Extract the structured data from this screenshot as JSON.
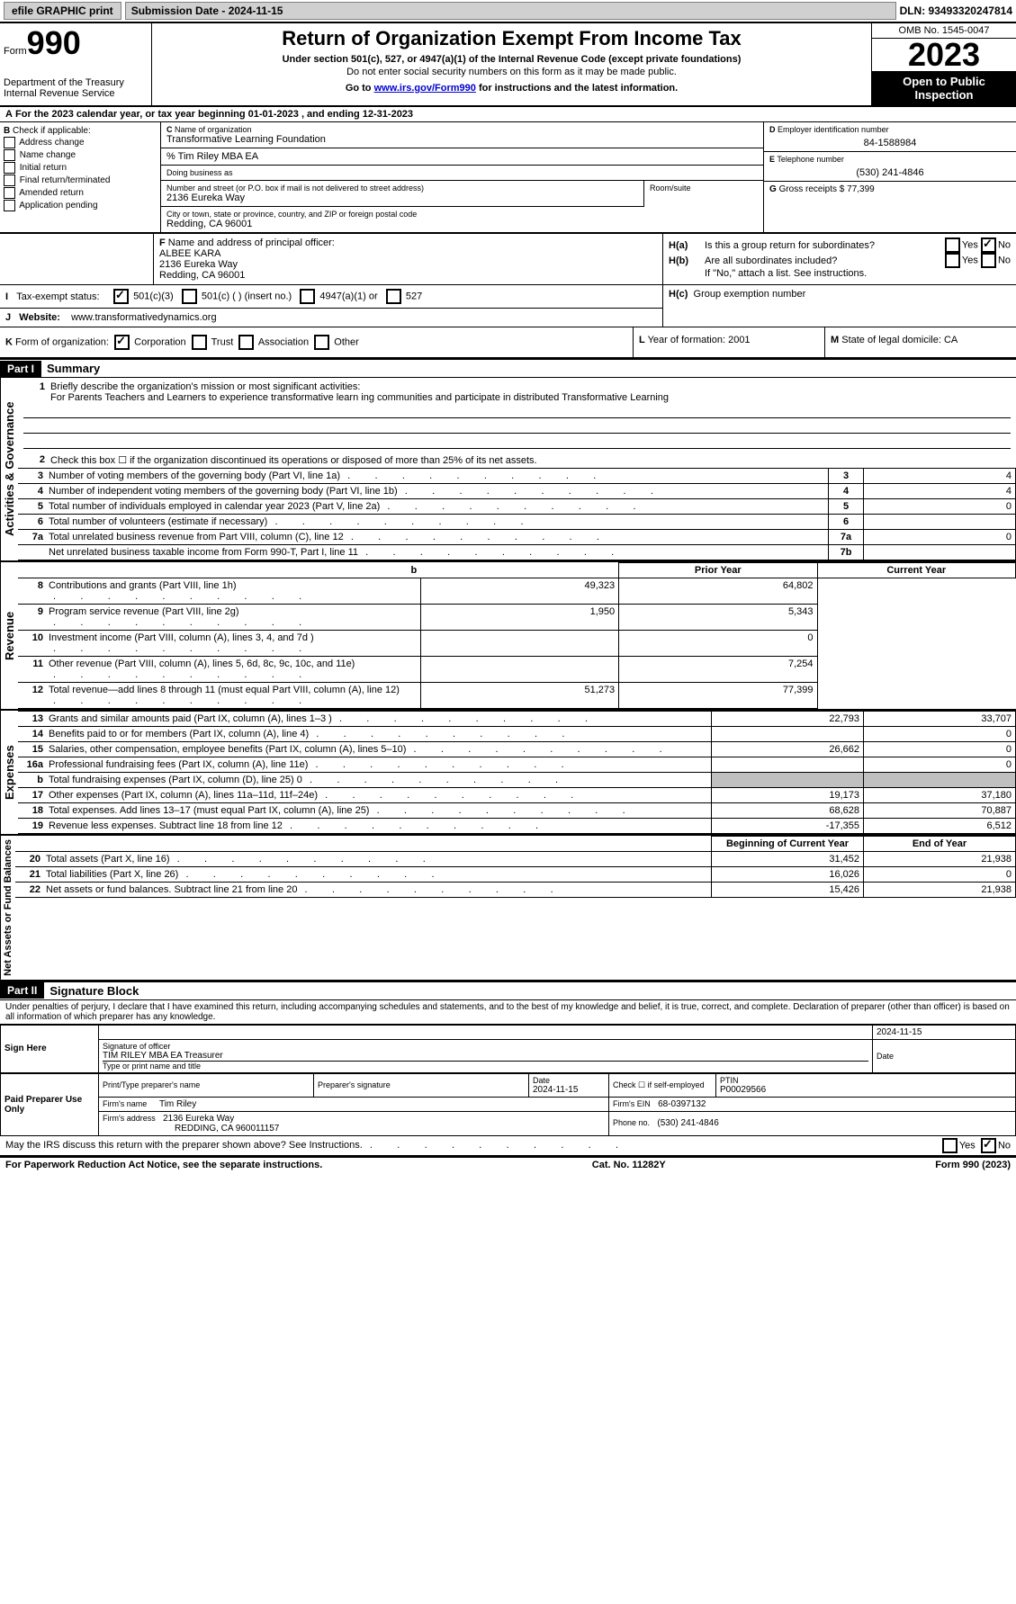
{
  "topbar": {
    "efile": "efile GRAPHIC print",
    "submission": "Submission Date - 2024-11-15",
    "dln": "DLN: 93493320247814"
  },
  "header": {
    "form_word": "Form",
    "form_num": "990",
    "dept": "Department of the Treasury Internal Revenue Service",
    "title": "Return of Organization Exempt From Income Tax",
    "sub1": "Under section 501(c), 527, or 4947(a)(1) of the Internal Revenue Code (except private foundations)",
    "sub2": "Do not enter social security numbers on this form as it may be made public.",
    "link_prefix": "Go to ",
    "link_url": "www.irs.gov/Form990",
    "link_suffix": " for instructions and the latest information.",
    "omb": "OMB No. 1545-0047",
    "year": "2023",
    "open": "Open to Public Inspection"
  },
  "A": {
    "text": "For the 2023 calendar year, or tax year beginning 01-01-2023    , and ending 12-31-2023"
  },
  "B": {
    "label": "Check if applicable:",
    "opts": [
      "Address change",
      "Name change",
      "Initial return",
      "Final return/terminated",
      "Amended return",
      "Application pending"
    ]
  },
  "C": {
    "name_lbl": "Name of organization",
    "name": "Transformative Learning Foundation",
    "care_of": "% Tim Riley MBA EA",
    "dba_lbl": "Doing business as",
    "dba": "",
    "addr_lbl": "Number and street (or P.O. box if mail is not delivered to street address)",
    "room_lbl": "Room/suite",
    "addr": "2136 Eureka Way",
    "city_lbl": "City or town, state or province, country, and ZIP or foreign postal code",
    "city": "Redding, CA  96001"
  },
  "D": {
    "lbl": "Employer identification number",
    "val": "84-1588984"
  },
  "E": {
    "lbl": "Telephone number",
    "val": "(530) 241-4846"
  },
  "G": {
    "lbl": "Gross receipts $",
    "val": "77,399"
  },
  "F": {
    "lbl": "Name and address of principal officer:",
    "name": "ALBEE KARA",
    "addr": "2136 Eureka Way",
    "city": "Redding, CA  96001"
  },
  "H": {
    "a": "Is this a group return for subordinates?",
    "b": "Are all subordinates included?",
    "b_note": "If \"No,\" attach a list. See instructions.",
    "c": "Group exemption number",
    "yes": "Yes",
    "no": "No"
  },
  "I": {
    "lbl": "Tax-exempt status:",
    "o1": "501(c)(3)",
    "o2": "501(c) (  ) (insert no.)",
    "o3": "4947(a)(1) or",
    "o4": "527"
  },
  "J": {
    "lbl": "Website:",
    "val": "www.transformativedynamics.org"
  },
  "K": {
    "lbl": "Form of organization:",
    "o1": "Corporation",
    "o2": "Trust",
    "o3": "Association",
    "o4": "Other"
  },
  "L": {
    "lbl": "Year of formation:",
    "val": "2001"
  },
  "M": {
    "lbl": "State of legal domicile:",
    "val": "CA"
  },
  "part1": {
    "hdr": "Part I",
    "title": "Summary",
    "q1": "Briefly describe the organization's mission or most significant activities:",
    "mission": "For Parents Teachers and Learners to experience transformative learn ing communities and participate in distributed Transformative Learning",
    "q2": "Check this box ☐ if the organization discontinued its operations or disposed of more than 25% of its net assets.",
    "side1": "Activities & Governance",
    "side2": "Revenue",
    "side3": "Expenses",
    "side4": "Net Assets or Fund Balances",
    "rows_gov": [
      {
        "n": "3",
        "t": "Number of voting members of the governing body (Part VI, line 1a)",
        "box": "3",
        "v": "4"
      },
      {
        "n": "4",
        "t": "Number of independent voting members of the governing body (Part VI, line 1b)",
        "box": "4",
        "v": "4"
      },
      {
        "n": "5",
        "t": "Total number of individuals employed in calendar year 2023 (Part V, line 2a)",
        "box": "5",
        "v": "0"
      },
      {
        "n": "6",
        "t": "Total number of volunteers (estimate if necessary)",
        "box": "6",
        "v": ""
      },
      {
        "n": "7a",
        "t": "Total unrelated business revenue from Part VIII, column (C), line 12",
        "box": "7a",
        "v": "0"
      },
      {
        "n": "",
        "t": "Net unrelated business taxable income from Form 990-T, Part I, line 11",
        "box": "7b",
        "v": ""
      }
    ],
    "col_hdr": {
      "b": "b",
      "prior": "Prior Year",
      "current": "Current Year"
    },
    "rows_rev": [
      {
        "n": "8",
        "t": "Contributions and grants (Part VIII, line 1h)",
        "p": "49,323",
        "c": "64,802"
      },
      {
        "n": "9",
        "t": "Program service revenue (Part VIII, line 2g)",
        "p": "1,950",
        "c": "5,343"
      },
      {
        "n": "10",
        "t": "Investment income (Part VIII, column (A), lines 3, 4, and 7d )",
        "p": "",
        "c": "0"
      },
      {
        "n": "11",
        "t": "Other revenue (Part VIII, column (A), lines 5, 6d, 8c, 9c, 10c, and 11e)",
        "p": "",
        "c": "7,254"
      },
      {
        "n": "12",
        "t": "Total revenue—add lines 8 through 11 (must equal Part VIII, column (A), line 12)",
        "p": "51,273",
        "c": "77,399"
      }
    ],
    "rows_exp": [
      {
        "n": "13",
        "t": "Grants and similar amounts paid (Part IX, column (A), lines 1–3 )",
        "p": "22,793",
        "c": "33,707"
      },
      {
        "n": "14",
        "t": "Benefits paid to or for members (Part IX, column (A), line 4)",
        "p": "",
        "c": "0"
      },
      {
        "n": "15",
        "t": "Salaries, other compensation, employee benefits (Part IX, column (A), lines 5–10)",
        "p": "26,662",
        "c": "0"
      },
      {
        "n": "16a",
        "t": "Professional fundraising fees (Part IX, column (A), line 11e)",
        "p": "",
        "c": "0"
      },
      {
        "n": "b",
        "t": "Total fundraising expenses (Part IX, column (D), line 25) 0",
        "p": "GRAY",
        "c": "GRAY"
      },
      {
        "n": "17",
        "t": "Other expenses (Part IX, column (A), lines 11a–11d, 11f–24e)",
        "p": "19,173",
        "c": "37,180"
      },
      {
        "n": "18",
        "t": "Total expenses. Add lines 13–17 (must equal Part IX, column (A), line 25)",
        "p": "68,628",
        "c": "70,887"
      },
      {
        "n": "19",
        "t": "Revenue less expenses. Subtract line 18 from line 12",
        "p": "-17,355",
        "c": "6,512"
      }
    ],
    "col_hdr2": {
      "begin": "Beginning of Current Year",
      "end": "End of Year"
    },
    "rows_net": [
      {
        "n": "20",
        "t": "Total assets (Part X, line 16)",
        "p": "31,452",
        "c": "21,938"
      },
      {
        "n": "21",
        "t": "Total liabilities (Part X, line 26)",
        "p": "16,026",
        "c": "0"
      },
      {
        "n": "22",
        "t": "Net assets or fund balances. Subtract line 21 from line 20",
        "p": "15,426",
        "c": "21,938"
      }
    ]
  },
  "part2": {
    "hdr": "Part II",
    "title": "Signature Block",
    "decl": "Under penalties of perjury, I declare that I have examined this return, including accompanying schedules and statements, and to the best of my knowledge and belief, it is true, correct, and complete. Declaration of preparer (other than officer) is based on all information of which preparer has any knowledge."
  },
  "sign": {
    "here": "Sign Here",
    "sig_lbl": "Signature of officer",
    "name": "TIM RILEY MBA EA  Treasurer",
    "name_lbl": "Type or print name and title",
    "date_lbl": "Date",
    "date": "2024-11-15"
  },
  "paid": {
    "lbl": "Paid Preparer Use Only",
    "print_lbl": "Print/Type preparer's name",
    "sig_lbl": "Preparer's signature",
    "date_lbl": "Date",
    "date": "2024-11-15",
    "check_lbl": "Check ☐ if self-employed",
    "ptin_lbl": "PTIN",
    "ptin": "P00029566",
    "firm_name_lbl": "Firm's name",
    "firm_name": "Tim Riley",
    "firm_ein_lbl": "Firm's EIN",
    "firm_ein": "68-0397132",
    "firm_addr_lbl": "Firm's address",
    "firm_addr": "2136 Eureka Way",
    "firm_city": "REDDING, CA  960011157",
    "phone_lbl": "Phone no.",
    "phone": "(530) 241-4846"
  },
  "discuss": {
    "q": "May the IRS discuss this return with the preparer shown above? See Instructions.",
    "yes": "Yes",
    "no": "No"
  },
  "footer": {
    "l": "For Paperwork Reduction Act Notice, see the separate instructions.",
    "m": "Cat. No. 11282Y",
    "r": "Form 990 (2023)"
  }
}
